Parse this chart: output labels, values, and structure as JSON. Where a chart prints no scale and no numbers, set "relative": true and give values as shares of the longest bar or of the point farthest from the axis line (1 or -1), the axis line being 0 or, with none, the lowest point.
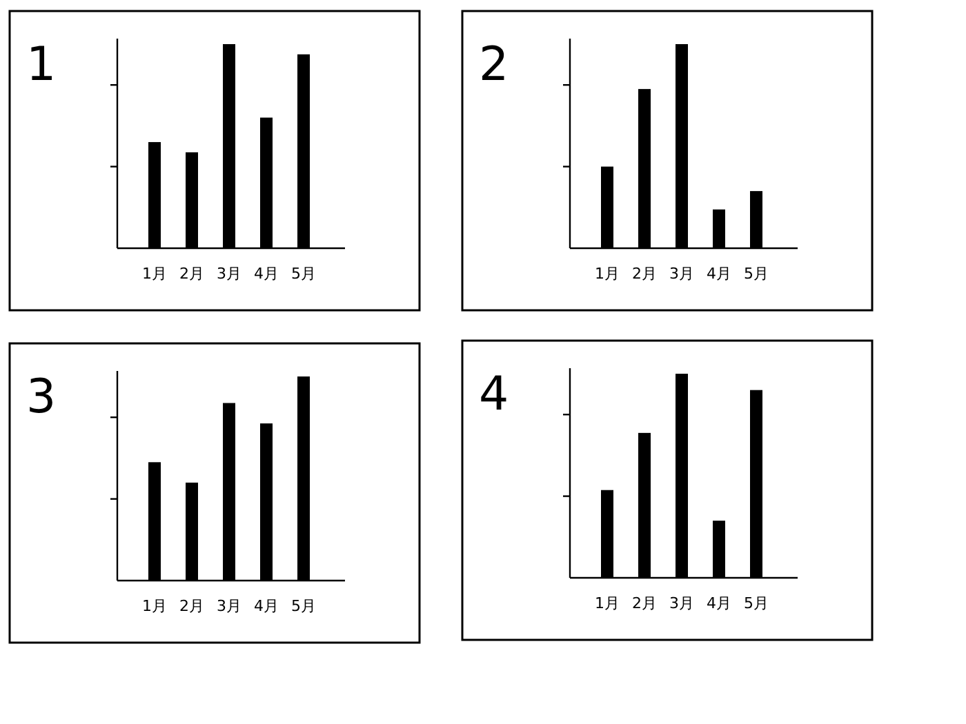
{
  "chart_data": [
    {
      "type": "bar",
      "title": "1",
      "categories": [
        "1月",
        "2月",
        "3月",
        "4月",
        "5月"
      ],
      "relative": true,
      "series": [
        {
          "color": "#000000",
          "values": [
            0.52,
            0.47,
            1,
            0.64,
            0.95
          ]
        }
      ]
    },
    {
      "type": "bar",
      "title": "2",
      "categories": [
        "1月",
        "2月",
        "3月",
        "4月",
        "5月"
      ],
      "relative": true,
      "series": [
        {
          "color": "#000000",
          "values": [
            0.4,
            0.78,
            1,
            0.19,
            0.28
          ]
        }
      ]
    },
    {
      "type": "bar",
      "title": "3",
      "categories": [
        "1月",
        "2月",
        "3月",
        "4月",
        "5月"
      ],
      "relative": true,
      "series": [
        {
          "color": "#000000",
          "values": [
            0.58,
            0.48,
            0.87,
            0.77,
            1
          ]
        }
      ]
    },
    {
      "type": "bar",
      "title": "4",
      "categories": [
        "1月",
        "2月",
        "3月",
        "4月",
        "5月"
      ],
      "relative": true,
      "series": [
        {
          "color": "#000000",
          "values": [
            0.43,
            0.71,
            1,
            0.28,
            0.92
          ]
        }
      ]
    }
  ]
}
